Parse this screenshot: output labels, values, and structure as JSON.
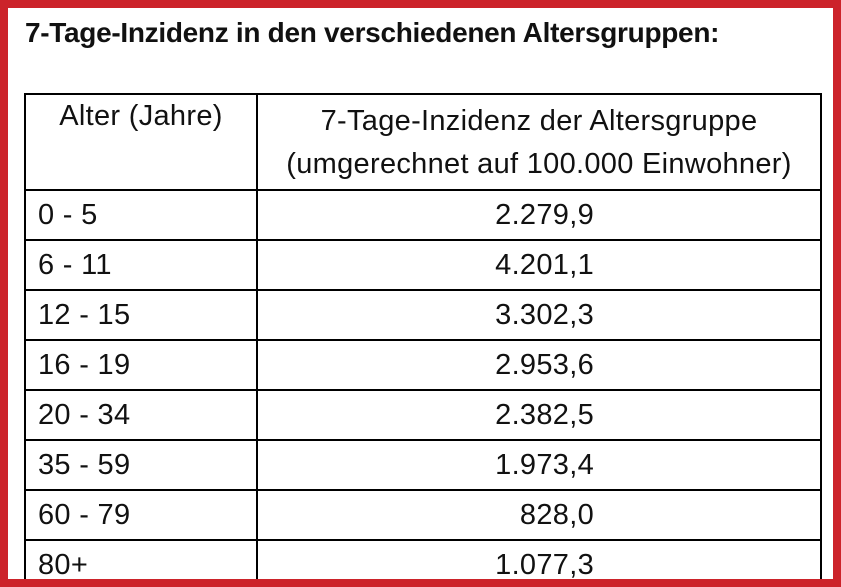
{
  "title": "7-Tage-Inzidenz in den verschiedenen Altersgruppen:",
  "table": {
    "header": {
      "col1": "Alter (Jahre)",
      "col2_line1": "7-Tage-Inzidenz der Altersgruppe",
      "col2_line2": "(umgerechnet auf 100.000 Einwohner)"
    },
    "rows": [
      {
        "age": "0 - 5",
        "incidence": "2.279,9"
      },
      {
        "age": "6 - 11",
        "incidence": "4.201,1"
      },
      {
        "age": "12 - 15",
        "incidence": "3.302,3"
      },
      {
        "age": "16 - 19",
        "incidence": "2.953,6"
      },
      {
        "age": "20 - 34",
        "incidence": "2.382,5"
      },
      {
        "age": "35 - 59",
        "incidence": "1.973,4"
      },
      {
        "age": "60 - 79",
        "incidence": "828,0"
      },
      {
        "age": "80+",
        "incidence": "1.077,3"
      }
    ]
  },
  "chart_data": {
    "type": "table",
    "title": "7-Tage-Inzidenz in den verschiedenen Altersgruppen:",
    "columns": [
      "Alter (Jahre)",
      "7-Tage-Inzidenz der Altersgruppe (umgerechnet auf 100.000 Einwohner)"
    ],
    "categories": [
      "0 - 5",
      "6 - 11",
      "12 - 15",
      "16 - 19",
      "20 - 34",
      "35 - 59",
      "60 - 79",
      "80+"
    ],
    "values": [
      2279.9,
      4201.1,
      3302.3,
      2953.6,
      2382.5,
      1973.4,
      828.0,
      1077.3
    ]
  },
  "colors": {
    "frame_border": "#cc232a",
    "table_border": "#000000",
    "text": "#111111",
    "background": "#ffffff"
  }
}
